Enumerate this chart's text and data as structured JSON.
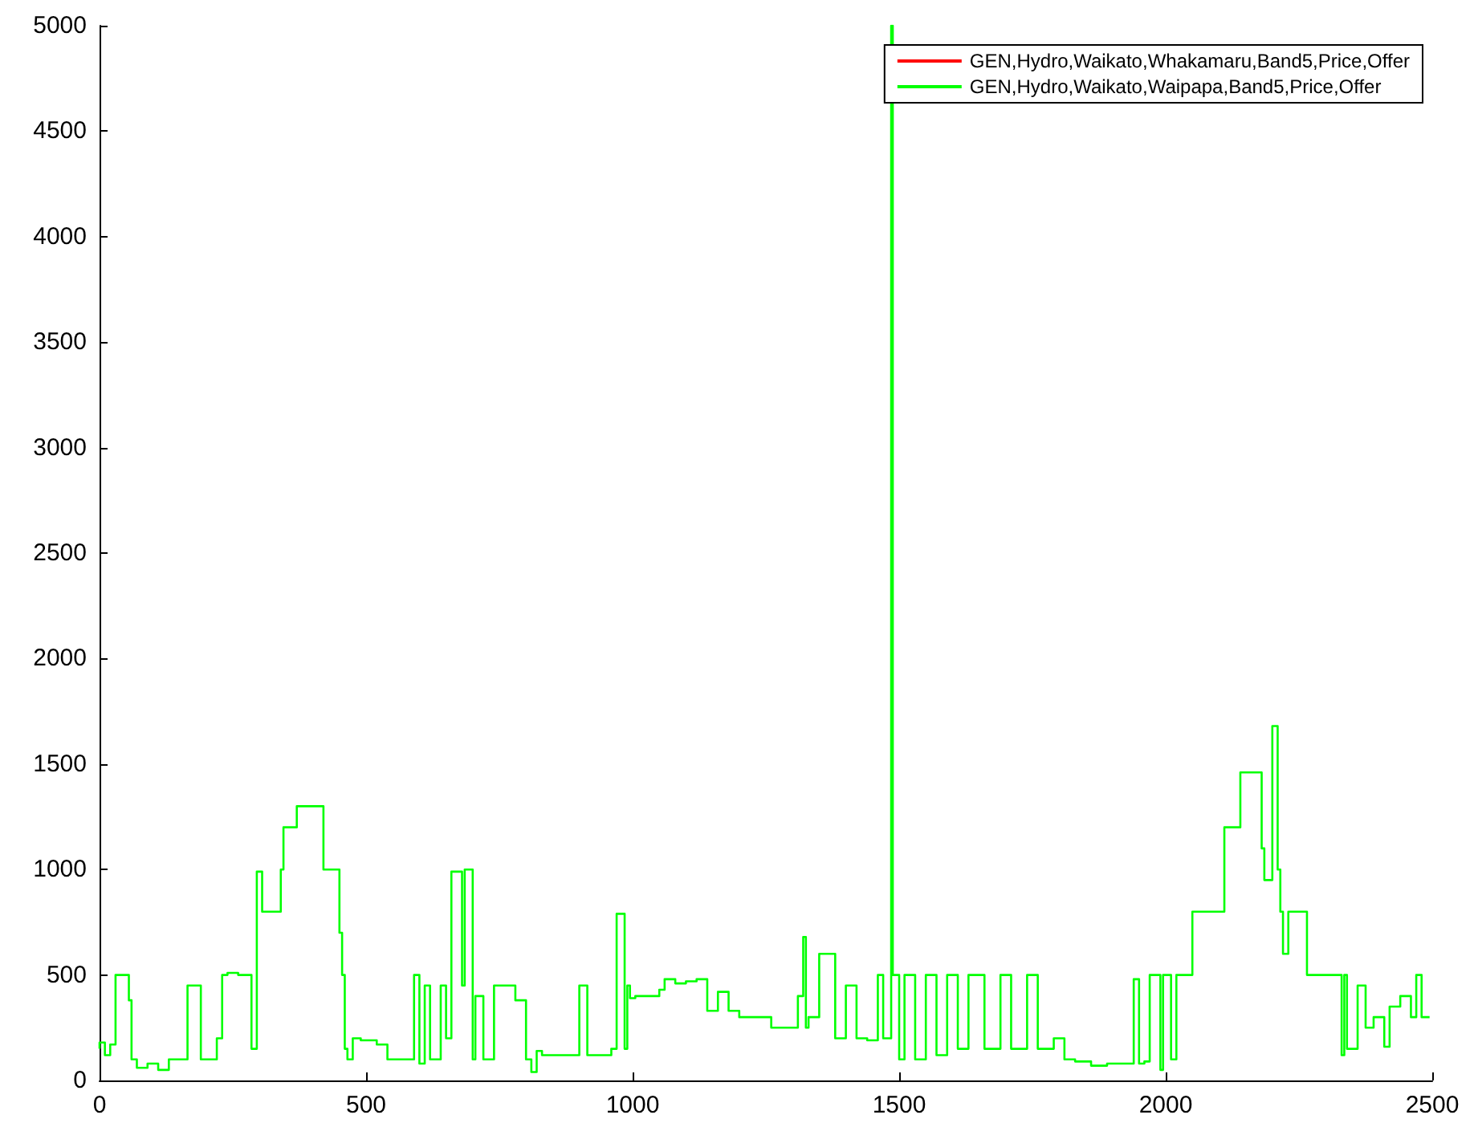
{
  "chart_data": {
    "type": "step",
    "legend": "top right",
    "grid": false,
    "line_style": "solid",
    "marker": "none",
    "xlim": [
      0,
      2500
    ],
    "xticks": [
      0,
      500,
      1000,
      1500,
      2000,
      2500
    ],
    "ylim": [
      0,
      5000
    ],
    "yticks": [
      0,
      500,
      1000,
      1500,
      2000,
      2500,
      3000,
      3500,
      4000,
      4500,
      5000
    ],
    "x": [
      0,
      10,
      20,
      30,
      45,
      55,
      60,
      70,
      90,
      110,
      130,
      150,
      165,
      170,
      190,
      195,
      220,
      230,
      240,
      260,
      270,
      285,
      295,
      305,
      310,
      340,
      345,
      355,
      370,
      380,
      420,
      430,
      450,
      455,
      460,
      465,
      475,
      490,
      520,
      540,
      560,
      590,
      600,
      610,
      620,
      640,
      650,
      660,
      680,
      685,
      700,
      705,
      720,
      740,
      760,
      780,
      800,
      810,
      820,
      830,
      900,
      915,
      920,
      960,
      970,
      985,
      990,
      995,
      1005,
      1050,
      1060,
      1080,
      1100,
      1120,
      1140,
      1160,
      1180,
      1200,
      1260,
      1290,
      1310,
      1320,
      1325,
      1330,
      1350,
      1380,
      1400,
      1420,
      1440,
      1460,
      1470,
      1485,
      1488,
      1492,
      1500,
      1510,
      1530,
      1550,
      1570,
      1590,
      1610,
      1630,
      1660,
      1690,
      1710,
      1740,
      1760,
      1790,
      1810,
      1830,
      1860,
      1890,
      1940,
      1950,
      1960,
      1970,
      1990,
      1995,
      2010,
      2020,
      2030,
      2050,
      2070,
      2110,
      2120,
      2140,
      2145,
      2180,
      2185,
      2190,
      2200,
      2210,
      2215,
      2220,
      2230,
      2235,
      2265,
      2270,
      2330,
      2335,
      2340,
      2360,
      2375,
      2390,
      2410,
      2420,
      2440,
      2460,
      2470,
      2480,
      2495
    ],
    "series": [
      {
        "name": "GEN,Hydro,Waikato,Whakamaru,Band5,Price,Offer",
        "color": "#ff0000",
        "values": [
          null,
          null,
          null,
          null,
          null,
          null,
          null,
          null,
          null,
          null,
          null,
          null,
          null,
          null,
          null,
          null,
          null,
          null,
          null,
          null,
          null,
          null,
          null,
          null,
          null,
          null,
          null,
          null,
          null,
          null,
          null,
          null,
          null,
          null,
          null,
          null,
          null,
          null,
          null,
          null,
          null,
          null,
          null,
          null,
          null,
          null,
          null,
          null,
          null,
          null,
          null,
          null,
          null,
          null,
          null,
          null,
          null,
          null,
          null,
          null,
          null,
          null,
          null,
          null,
          null,
          null,
          null,
          null,
          null,
          null,
          null,
          null,
          null,
          null,
          null,
          null,
          null,
          null,
          null,
          null,
          null,
          null,
          null,
          null,
          null,
          null,
          null,
          null,
          null,
          null,
          null,
          null,
          null,
          null,
          null,
          null,
          null,
          null,
          null,
          null,
          null,
          null,
          null,
          null,
          null,
          null,
          null,
          null,
          null,
          null,
          null,
          null,
          null,
          null,
          null,
          null,
          null,
          null,
          null,
          null,
          null,
          null,
          null,
          null,
          null,
          null,
          null,
          null,
          null,
          null,
          null,
          null,
          null,
          null,
          null,
          null,
          null,
          null,
          null,
          null,
          null,
          null,
          null,
          null,
          null,
          null,
          null,
          null,
          null,
          null,
          null
        ]
      },
      {
        "name": "GEN,Hydro,Waikato,Waipapa,Band5,Price,Offer",
        "color": "#00ff00",
        "values": [
          150,
          180,
          120,
          170,
          500,
          500,
          380,
          100,
          60,
          80,
          50,
          100,
          100,
          450,
          450,
          100,
          100,
          200,
          500,
          510,
          500,
          500,
          150,
          990,
          800,
          800,
          1000,
          1200,
          1200,
          1300,
          1300,
          1000,
          1000,
          700,
          500,
          150,
          100,
          200,
          190,
          170,
          100,
          100,
          500,
          80,
          450,
          100,
          450,
          200,
          990,
          450,
          1000,
          100,
          400,
          100,
          450,
          450,
          380,
          100,
          40,
          140,
          120,
          450,
          120,
          120,
          150,
          790,
          150,
          450,
          390,
          400,
          430,
          480,
          460,
          470,
          480,
          330,
          420,
          330,
          300,
          250,
          250,
          400,
          680,
          250,
          300,
          600,
          200,
          450,
          200,
          190,
          500,
          200,
          5000,
          500,
          500,
          100,
          500,
          100,
          500,
          120,
          500,
          150,
          500,
          150,
          500,
          150,
          500,
          150,
          200,
          100,
          90,
          70,
          80,
          480,
          80,
          90,
          500,
          50,
          500,
          100,
          500,
          500,
          800,
          800,
          1200,
          1200,
          1460,
          1460,
          1100,
          950,
          950,
          1680,
          1000,
          800,
          600,
          800,
          800,
          500,
          500,
          120,
          500,
          150,
          450,
          250,
          300,
          160,
          350,
          400,
          300,
          500,
          300
        ]
      }
    ]
  }
}
